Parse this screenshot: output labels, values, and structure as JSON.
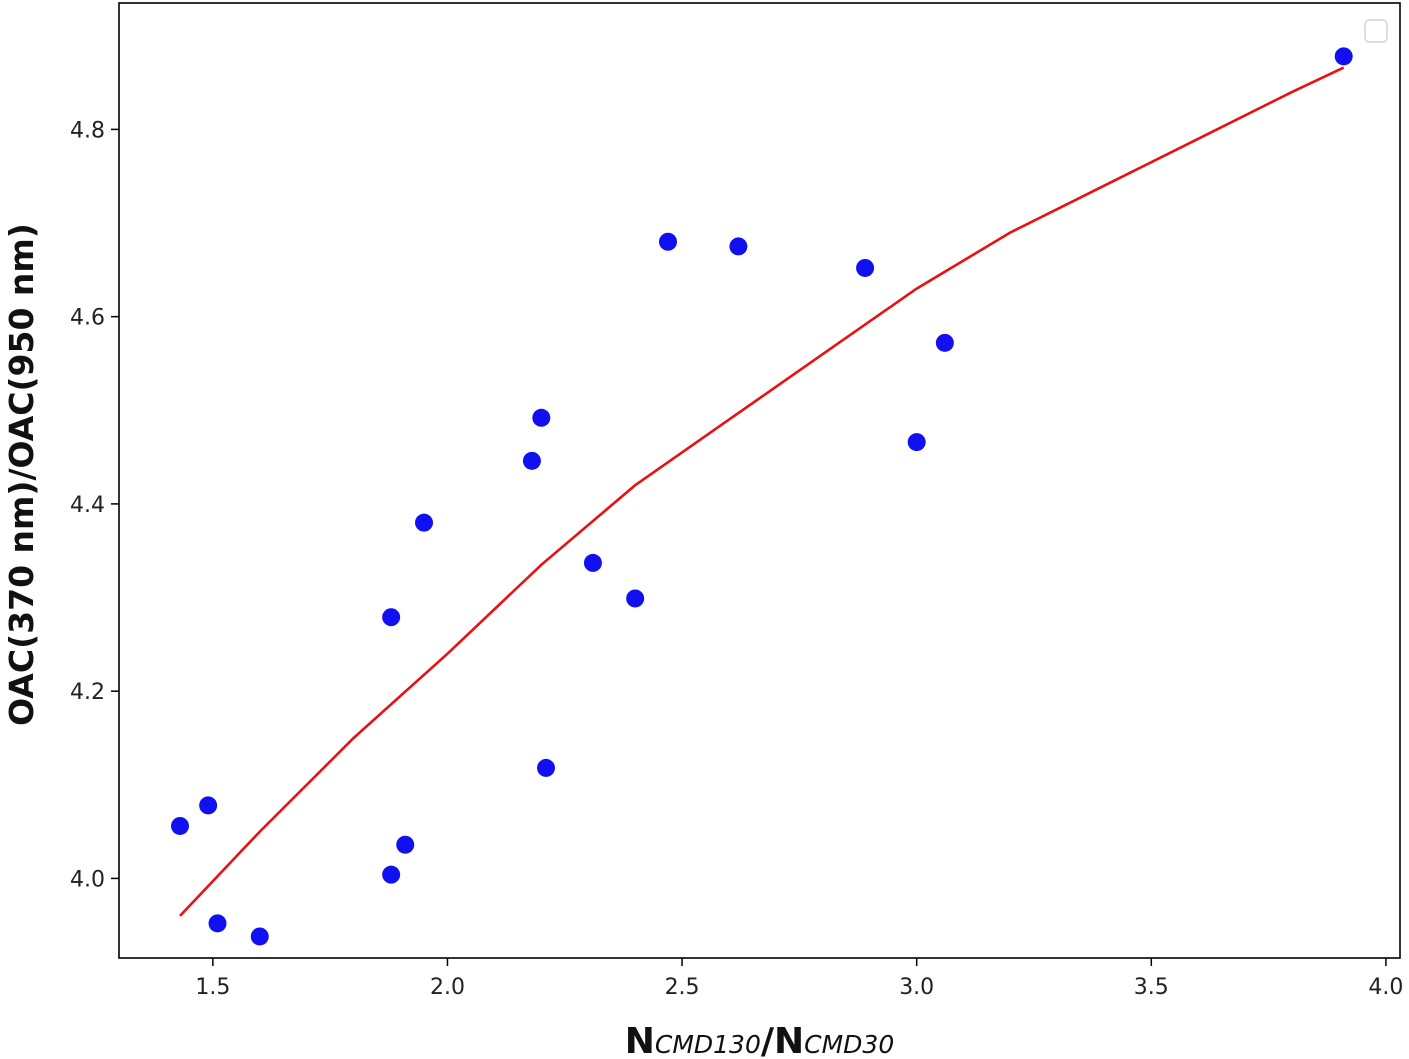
{
  "chart_data": {
    "type": "scatter",
    "xlabel": {
      "parts": [
        {
          "text": "N",
          "sub": false
        },
        {
          "text": "CMD130",
          "sub": true
        },
        {
          "text": "/N",
          "sub": false
        },
        {
          "text": "CMD30",
          "sub": true
        }
      ]
    },
    "ylabel": "OAC(370 nm)/OAC(950 nm)",
    "xlim": [
      1.3,
      4.03
    ],
    "ylim": [
      3.915,
      4.935
    ],
    "xticks": [
      1.5,
      2.0,
      2.5,
      3.0,
      3.5,
      4.0
    ],
    "xtick_labels": [
      "1.5",
      "2.0",
      "2.5",
      "3.0",
      "3.5",
      "4.0"
    ],
    "yticks": [
      4.0,
      4.2,
      4.4,
      4.6,
      4.8
    ],
    "ytick_labels": [
      "4.0",
      "4.2",
      "4.4",
      "4.6",
      "4.8"
    ],
    "grid": false,
    "legend": {
      "placement": "top-right",
      "entries": []
    },
    "series": [
      {
        "kind": "scatter",
        "color": "#1010f0",
        "points": [
          [
            1.43,
            4.056
          ],
          [
            1.49,
            4.078
          ],
          [
            1.51,
            3.952
          ],
          [
            1.6,
            3.938
          ],
          [
            1.88,
            4.279
          ],
          [
            1.88,
            4.004
          ],
          [
            1.91,
            4.036
          ],
          [
            1.95,
            4.38
          ],
          [
            2.18,
            4.446
          ],
          [
            2.2,
            4.492
          ],
          [
            2.21,
            4.118
          ],
          [
            2.31,
            4.337
          ],
          [
            2.4,
            4.299
          ],
          [
            2.47,
            4.68
          ],
          [
            2.62,
            4.675
          ],
          [
            2.89,
            4.652
          ],
          [
            3.0,
            4.466
          ],
          [
            3.06,
            4.572
          ],
          [
            3.91,
            4.878
          ]
        ]
      },
      {
        "kind": "line",
        "color": "#e81010",
        "points": [
          [
            1.43,
            3.96
          ],
          [
            1.6,
            4.05
          ],
          [
            1.8,
            4.15
          ],
          [
            2.0,
            4.24
          ],
          [
            2.2,
            4.335
          ],
          [
            2.4,
            4.42
          ],
          [
            2.6,
            4.49
          ],
          [
            2.8,
            4.56
          ],
          [
            3.0,
            4.63
          ],
          [
            3.2,
            4.69
          ],
          [
            3.4,
            4.74
          ],
          [
            3.6,
            4.79
          ],
          [
            3.8,
            4.84
          ],
          [
            3.91,
            4.866
          ]
        ]
      }
    ]
  }
}
